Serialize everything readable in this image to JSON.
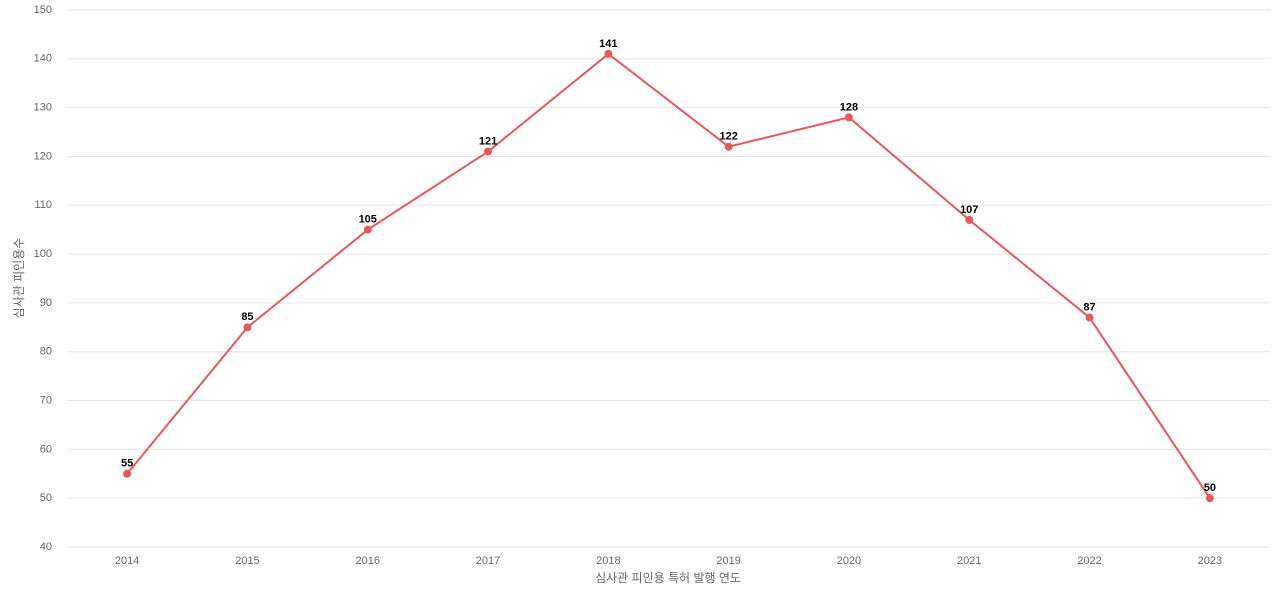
{
  "chart_data": {
    "type": "line",
    "x_label": "심사관 피인용 특허 발행 연도",
    "y_label": "심사관 피인용수",
    "categories": [
      "2014",
      "2015",
      "2016",
      "2017",
      "2018",
      "2019",
      "2020",
      "2021",
      "2022",
      "2023"
    ],
    "values": [
      55,
      85,
      105,
      121,
      141,
      122,
      128,
      107,
      87,
      50
    ],
    "color": "#e8575a",
    "ylim": [
      40,
      150
    ],
    "yticks": [
      40,
      50,
      60,
      70,
      80,
      90,
      100,
      110,
      120,
      130,
      140,
      150
    ],
    "grid": true
  }
}
